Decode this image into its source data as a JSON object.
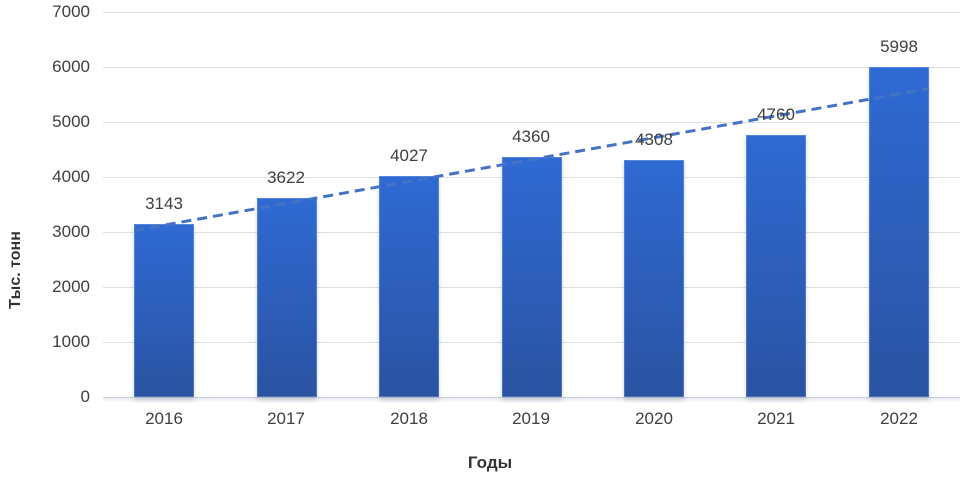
{
  "chart_data": {
    "type": "bar",
    "categories": [
      "2016",
      "2017",
      "2018",
      "2019",
      "2020",
      "2021",
      "2022"
    ],
    "values": [
      3143,
      3622,
      4027,
      4360,
      4308,
      4760,
      5998
    ],
    "data_labels": [
      "3143",
      "3622",
      "4027",
      "4360",
      "4308",
      "4760",
      "5998"
    ],
    "xlabel": "Годы",
    "ylabel": "Тыс. тонн",
    "ylim": [
      0,
      7000
    ],
    "yticks": [
      0,
      1000,
      2000,
      3000,
      4000,
      5000,
      6000,
      7000
    ],
    "grid": "horizontal",
    "legend": "none",
    "trendline": {
      "type": "linear",
      "line_style": "dashed",
      "color": "#4472C4",
      "start_value": 3125,
      "end_value": 5509
    },
    "colors": {
      "bar_top": "#2F6AD3",
      "bar_bottom": "#2A53A2",
      "gridline": "#DBDFE6",
      "axis_line": "#C9CED6",
      "text": "#404040",
      "title_text": "#333333",
      "background": "#FFFFFF"
    }
  }
}
